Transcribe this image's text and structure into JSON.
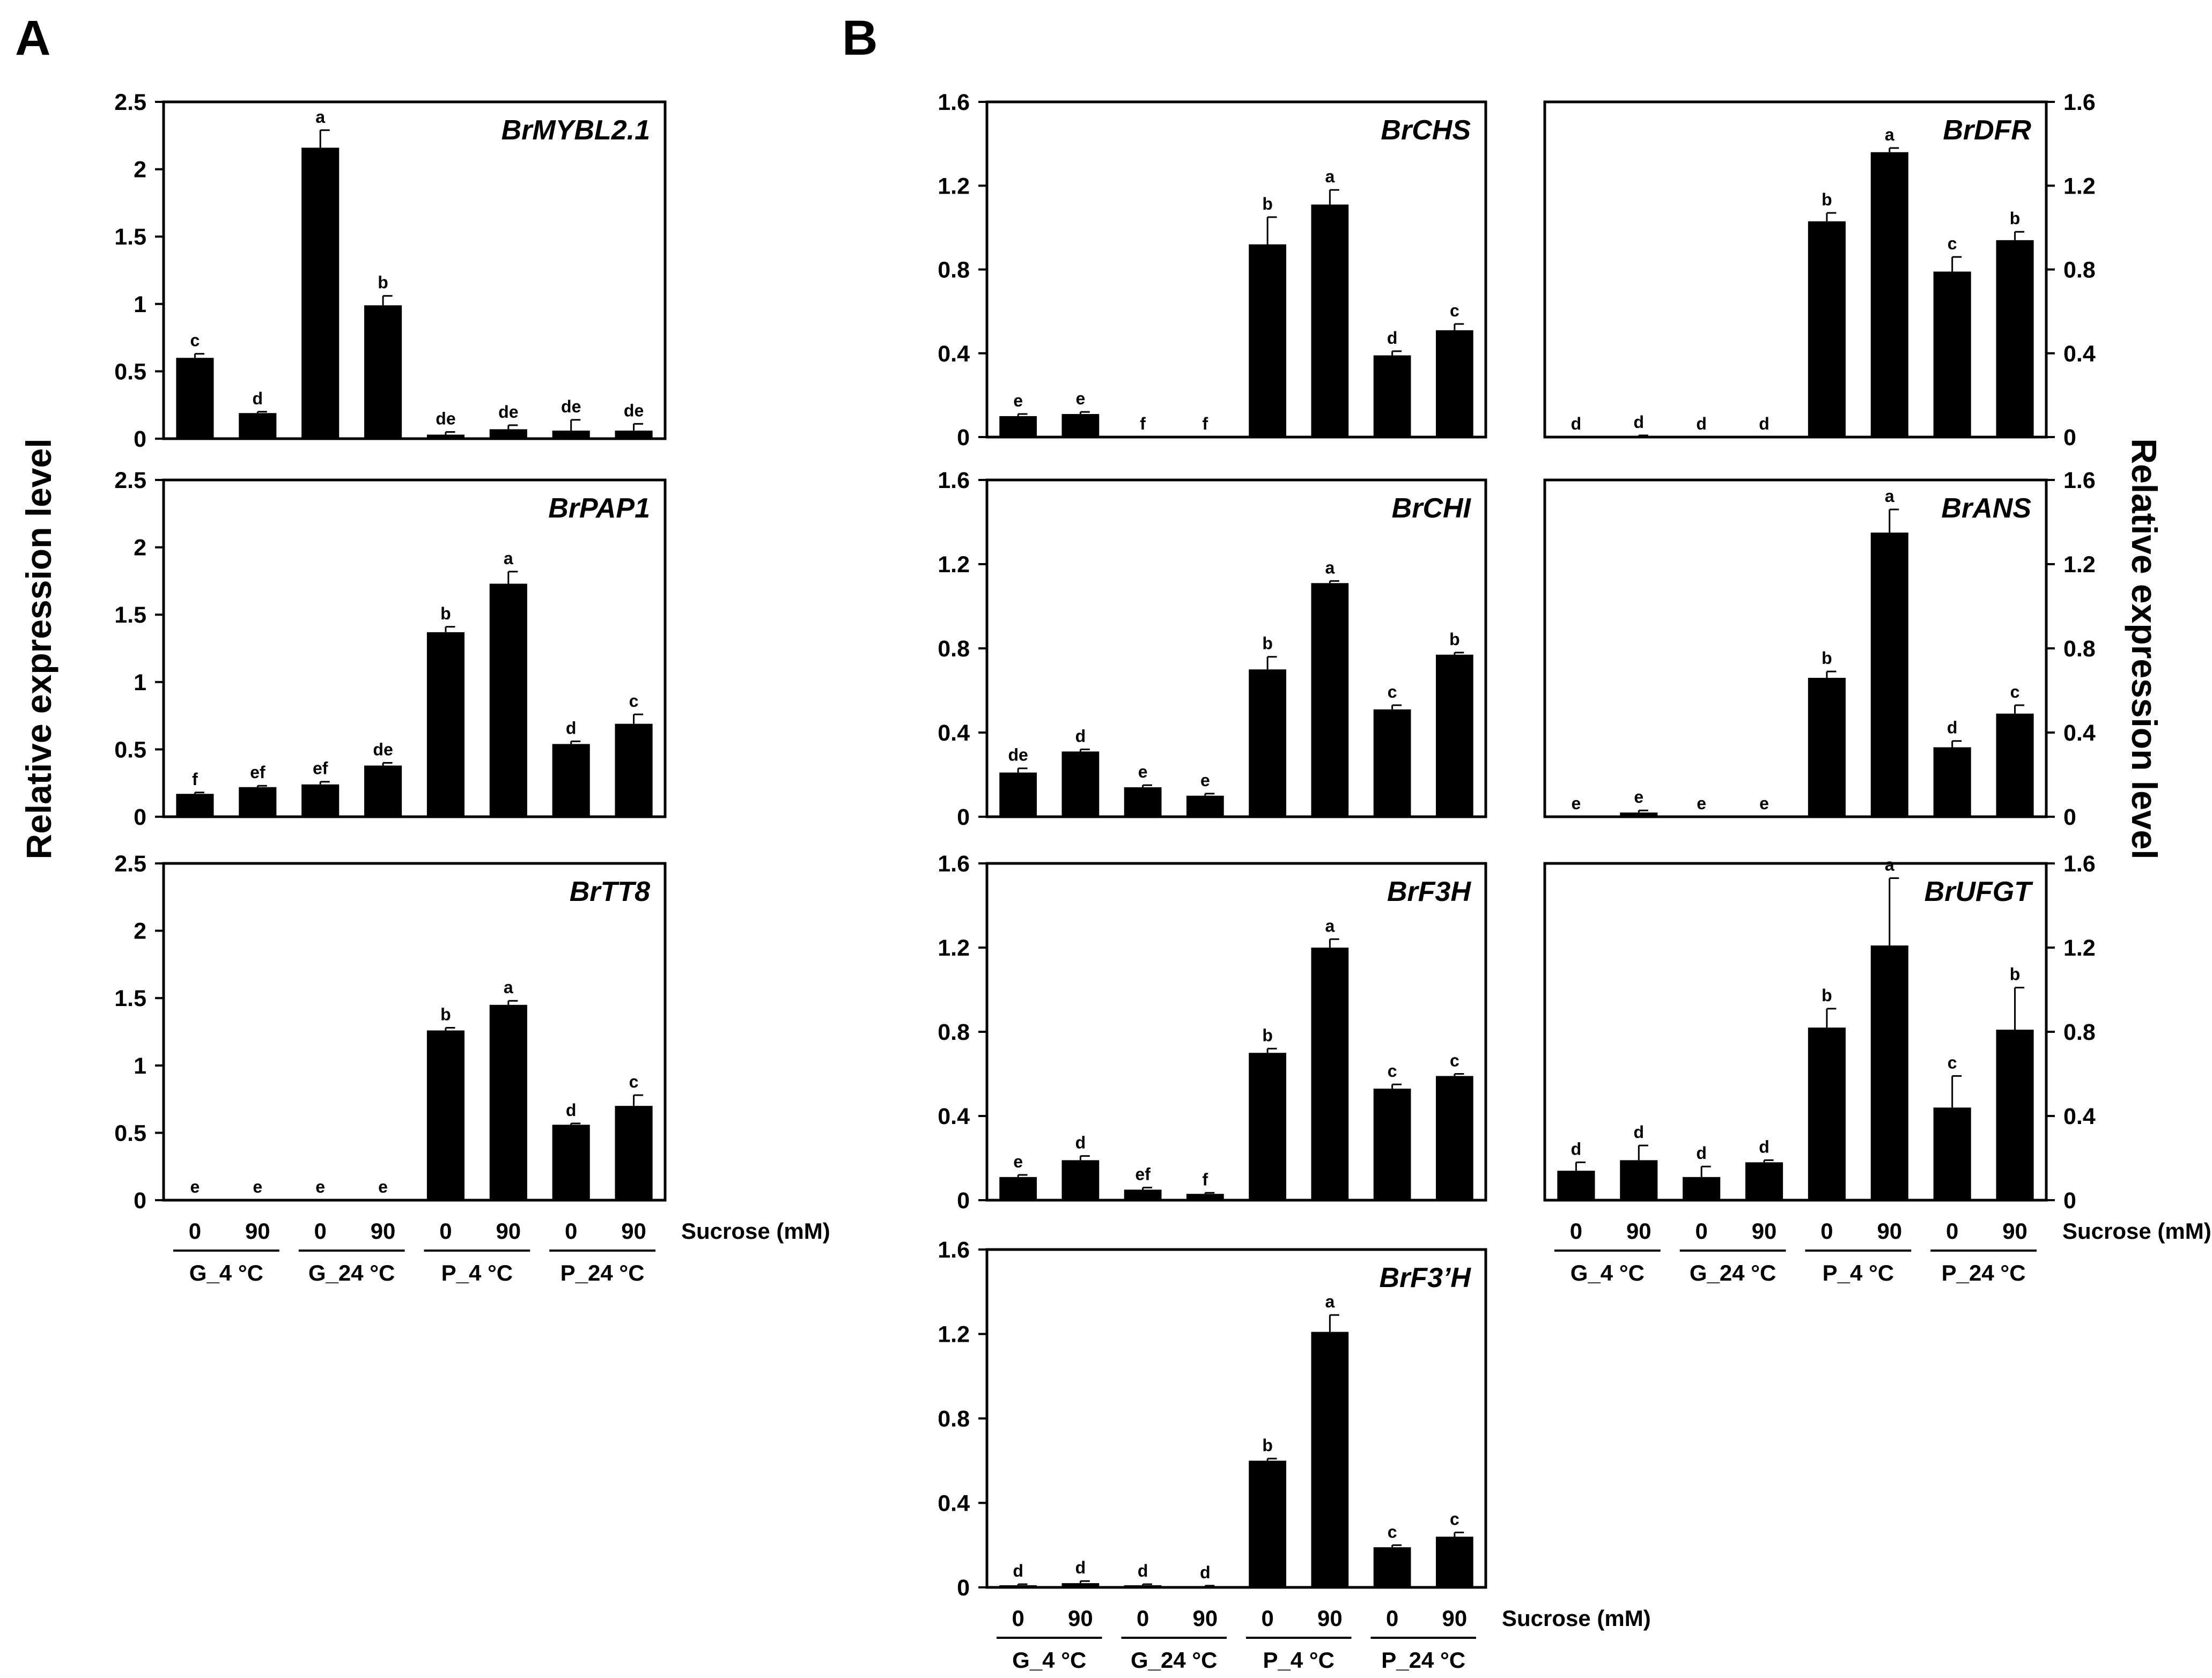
{
  "panel_labels": {
    "A": "A",
    "B": "B"
  },
  "ylabel_left": "Relative expression level",
  "ylabel_right": "Relative expression level",
  "x_axis": {
    "sucrose_values": [
      "0",
      "90",
      "0",
      "90",
      "0",
      "90",
      "0",
      "90"
    ],
    "sucrose_label": "Sucrose (mM)",
    "groups": [
      "G_4 °C",
      "G_24 °C",
      "P_4 °C",
      "P_24 °C"
    ]
  },
  "chart_data": [
    {
      "id": "BrMYBL2.1",
      "type": "bar",
      "title": "BrMYBL2.1",
      "categories": [
        "G_4 °C 0",
        "G_4 °C 90",
        "G_24 °C 0",
        "G_24 °C 90",
        "P_4 °C 0",
        "P_4 °C 90",
        "P_24 °C 0",
        "P_24 °C 90"
      ],
      "values": [
        0.6,
        0.19,
        2.16,
        0.99,
        0.03,
        0.07,
        0.06,
        0.06
      ],
      "errors": [
        0.03,
        0.01,
        0.13,
        0.07,
        0.02,
        0.03,
        0.08,
        0.05
      ],
      "letters": [
        "c",
        "d",
        "a",
        "b",
        "de",
        "de",
        "de",
        "de"
      ],
      "ylim": [
        0,
        2.5
      ],
      "yticks": [
        "0",
        "0.5",
        "1",
        "1.5",
        "2",
        "2.5"
      ],
      "ytick_values": [
        0,
        0.5,
        1,
        1.5,
        2,
        2.5
      ]
    },
    {
      "id": "BrPAP1",
      "type": "bar",
      "title": "BrPAP1",
      "categories": [
        "G_4 °C 0",
        "G_4 °C 90",
        "G_24 °C 0",
        "G_24 °C 90",
        "P_4 °C 0",
        "P_4 °C 90",
        "P_24 °C 0",
        "P_24 °C 90"
      ],
      "values": [
        0.17,
        0.22,
        0.24,
        0.38,
        1.37,
        1.73,
        0.54,
        0.69
      ],
      "errors": [
        0.01,
        0.01,
        0.02,
        0.02,
        0.04,
        0.09,
        0.02,
        0.07
      ],
      "letters": [
        "f",
        "ef",
        "ef",
        "de",
        "b",
        "a",
        "d",
        "c"
      ],
      "ylim": [
        0,
        2.5
      ],
      "yticks": [
        "0",
        "0.5",
        "1",
        "1.5",
        "2",
        "2.5"
      ],
      "ytick_values": [
        0,
        0.5,
        1,
        1.5,
        2,
        2.5
      ]
    },
    {
      "id": "BrTT8",
      "type": "bar",
      "title": "BrTT8",
      "categories": [
        "G_4 °C 0",
        "G_4 °C 90",
        "G_24 °C 0",
        "G_24 °C 90",
        "P_4 °C 0",
        "P_4 °C 90",
        "P_24 °C 0",
        "P_24 °C 90"
      ],
      "values": [
        0,
        0,
        0,
        0,
        1.26,
        1.45,
        0.56,
        0.7
      ],
      "errors": [
        0,
        0,
        0,
        0,
        0.02,
        0.03,
        0.01,
        0.08
      ],
      "letters": [
        "e",
        "e",
        "e",
        "e",
        "b",
        "a",
        "d",
        "c"
      ],
      "ylim": [
        0,
        2.5
      ],
      "yticks": [
        "0",
        "0.5",
        "1",
        "1.5",
        "2",
        "2.5"
      ],
      "ytick_values": [
        0,
        0.5,
        1,
        1.5,
        2,
        2.5
      ]
    },
    {
      "id": "BrCHS",
      "type": "bar",
      "title": "BrCHS",
      "categories": [
        "G_4 °C 0",
        "G_4 °C 90",
        "G_24 °C 0",
        "G_24 °C 90",
        "P_4 °C 0",
        "P_4 °C 90",
        "P_24 °C 0",
        "P_24 °C 90"
      ],
      "values": [
        0.1,
        0.11,
        0,
        0,
        0.92,
        1.11,
        0.39,
        0.51
      ],
      "errors": [
        0.01,
        0.01,
        0,
        0,
        0.13,
        0.07,
        0.02,
        0.03
      ],
      "letters": [
        "e",
        "e",
        "f",
        "f",
        "b",
        "a",
        "d",
        "c"
      ],
      "ylim": [
        0,
        1.6
      ],
      "yticks": [
        "0",
        "0.4",
        "0.8",
        "1.2",
        "1.6"
      ],
      "ytick_values": [
        0,
        0.4,
        0.8,
        1.2,
        1.6
      ]
    },
    {
      "id": "BrDFR",
      "type": "bar",
      "title": "BrDFR",
      "categories": [
        "G_4 °C 0",
        "G_4 °C 90",
        "G_24 °C 0",
        "G_24 °C 90",
        "P_4 °C 0",
        "P_4 °C 90",
        "P_24 °C 0",
        "P_24 °C 90"
      ],
      "values": [
        0,
        0.005,
        0,
        0,
        1.03,
        1.36,
        0.79,
        0.94
      ],
      "errors": [
        0,
        0.003,
        0,
        0,
        0.04,
        0.02,
        0.07,
        0.04
      ],
      "letters": [
        "d",
        "d",
        "d",
        "d",
        "b",
        "a",
        "c",
        "b"
      ],
      "ylim": [
        0,
        1.6
      ],
      "yticks": [
        "0",
        "0.4",
        "0.8",
        "1.2",
        "1.6"
      ],
      "ytick_values": [
        0,
        0.4,
        0.8,
        1.2,
        1.6
      ]
    },
    {
      "id": "BrCHI",
      "type": "bar",
      "title": "BrCHI",
      "categories": [
        "G_4 °C 0",
        "G_4 °C 90",
        "G_24 °C 0",
        "G_24 °C 90",
        "P_4 °C 0",
        "P_4 °C 90",
        "P_24 °C 0",
        "P_24 °C 90"
      ],
      "values": [
        0.21,
        0.31,
        0.14,
        0.1,
        0.7,
        1.11,
        0.51,
        0.77
      ],
      "errors": [
        0.02,
        0.01,
        0.01,
        0.01,
        0.06,
        0.01,
        0.02,
        0.01
      ],
      "letters": [
        "de",
        "d",
        "e",
        "e",
        "b",
        "a",
        "c",
        "b"
      ],
      "ylim": [
        0,
        1.6
      ],
      "yticks": [
        "0",
        "0.4",
        "0.8",
        "1.2",
        "1.6"
      ],
      "ytick_values": [
        0,
        0.4,
        0.8,
        1.2,
        1.6
      ]
    },
    {
      "id": "BrANS",
      "type": "bar",
      "title": "BrANS",
      "categories": [
        "G_4 °C 0",
        "G_4 °C 90",
        "G_24 °C 0",
        "G_24 °C 90",
        "P_4 °C 0",
        "P_4 °C 90",
        "P_24 °C 0",
        "P_24 °C 90"
      ],
      "values": [
        0,
        0.02,
        0,
        0,
        0.66,
        1.35,
        0.33,
        0.49
      ],
      "errors": [
        0,
        0.01,
        0,
        0,
        0.03,
        0.11,
        0.03,
        0.04
      ],
      "letters": [
        "e",
        "e",
        "e",
        "e",
        "b",
        "a",
        "d",
        "c"
      ],
      "ylim": [
        0,
        1.6
      ],
      "yticks": [
        "0",
        "0.4",
        "0.8",
        "1.2",
        "1.6"
      ],
      "ytick_values": [
        0,
        0.4,
        0.8,
        1.2,
        1.6
      ]
    },
    {
      "id": "BrF3H",
      "type": "bar",
      "title": "BrF3H",
      "categories": [
        "G_4 °C 0",
        "G_4 °C 90",
        "G_24 °C 0",
        "G_24 °C 90",
        "P_4 °C 0",
        "P_4 °C 90",
        "P_24 °C 0",
        "P_24 °C 90"
      ],
      "values": [
        0.11,
        0.19,
        0.05,
        0.03,
        0.7,
        1.2,
        0.53,
        0.59
      ],
      "errors": [
        0.01,
        0.02,
        0.01,
        0.005,
        0.02,
        0.04,
        0.02,
        0.01
      ],
      "letters": [
        "e",
        "d",
        "ef",
        "f",
        "b",
        "a",
        "c",
        "c"
      ],
      "ylim": [
        0,
        1.6
      ],
      "yticks": [
        "0",
        "0.4",
        "0.8",
        "1.2",
        "1.6"
      ],
      "ytick_values": [
        0,
        0.4,
        0.8,
        1.2,
        1.6
      ]
    },
    {
      "id": "BrUFGT",
      "type": "bar",
      "title": "BrUFGT",
      "categories": [
        "G_4 °C 0",
        "G_4 °C 90",
        "G_24 °C 0",
        "G_24 °C 90",
        "P_4 °C 0",
        "P_4 °C 90",
        "P_24 °C 0",
        "P_24 °C 90"
      ],
      "values": [
        0.14,
        0.19,
        0.11,
        0.18,
        0.82,
        1.21,
        0.44,
        0.81
      ],
      "errors": [
        0.04,
        0.07,
        0.05,
        0.01,
        0.09,
        0.32,
        0.15,
        0.2
      ],
      "letters": [
        "d",
        "d",
        "d",
        "d",
        "b",
        "a",
        "c",
        "b"
      ],
      "ylim": [
        0,
        1.6
      ],
      "yticks": [
        "0",
        "0.4",
        "0.8",
        "1.2",
        "1.6"
      ],
      "ytick_values": [
        0,
        0.4,
        0.8,
        1.2,
        1.6
      ]
    },
    {
      "id": "BrF3'H",
      "type": "bar",
      "title": "BrF3’H",
      "categories": [
        "G_4 °C 0",
        "G_4 °C 90",
        "G_24 °C 0",
        "G_24 °C 90",
        "P_4 °C 0",
        "P_4 °C 90",
        "P_24 °C 0",
        "P_24 °C 90"
      ],
      "values": [
        0.01,
        0.02,
        0.01,
        0.005,
        0.6,
        1.21,
        0.19,
        0.24
      ],
      "errors": [
        0.005,
        0.01,
        0.005,
        0.003,
        0.01,
        0.08,
        0.01,
        0.02
      ],
      "letters": [
        "d",
        "d",
        "d",
        "d",
        "b",
        "a",
        "c",
        "c"
      ],
      "ylim": [
        0,
        1.6
      ],
      "yticks": [
        "0",
        "0.4",
        "0.8",
        "1.2",
        "1.6"
      ],
      "ytick_values": [
        0,
        0.4,
        0.8,
        1.2,
        1.6
      ]
    }
  ]
}
